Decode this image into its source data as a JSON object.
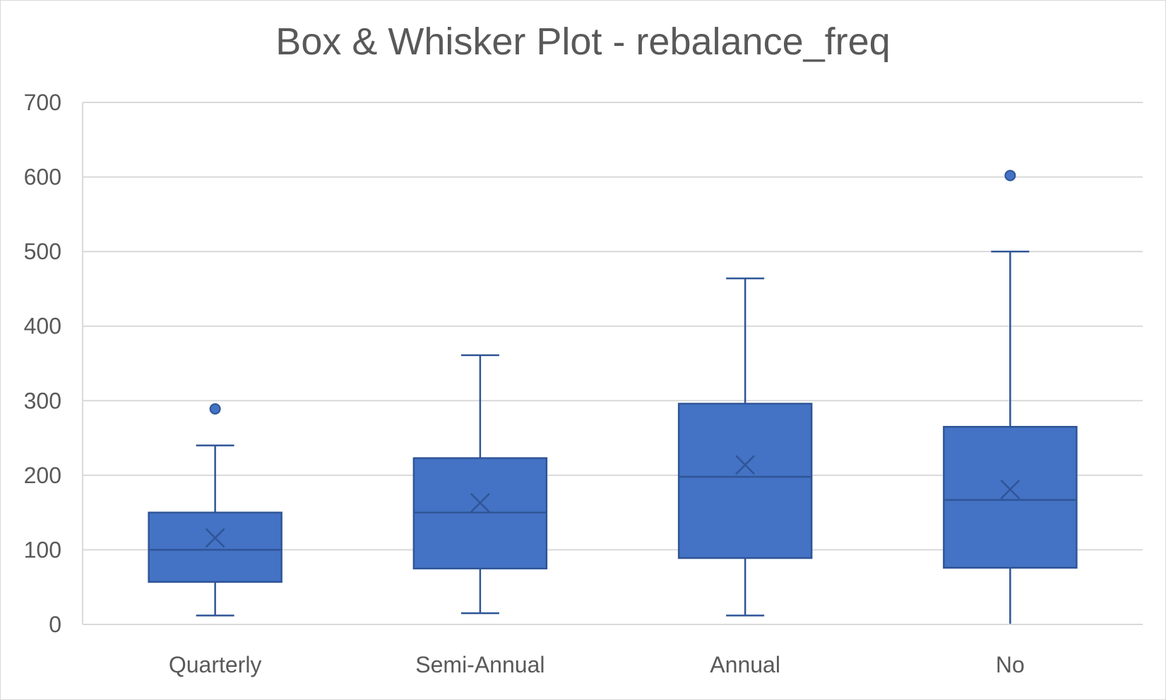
{
  "chart_data": {
    "type": "box",
    "title": "Box & Whisker Plot - rebalance_freq",
    "xlabel": "",
    "ylabel": "",
    "ylim": [
      0,
      700
    ],
    "yticks": [
      0,
      100,
      200,
      300,
      400,
      500,
      600,
      700
    ],
    "grid": true,
    "legend": "none",
    "colors": {
      "box_fill": "#4472c4",
      "box_stroke": "#2f5597",
      "grid": "#d9d9d9",
      "text": "#595959"
    },
    "categories": [
      "Quarterly",
      "Semi-Annual",
      "Annual",
      "No"
    ],
    "boxes": [
      {
        "category": "Quarterly",
        "min": 12,
        "q1": 57,
        "median": 100,
        "q3": 150,
        "max": 240,
        "mean": 116,
        "outliers": [
          289
        ]
      },
      {
        "category": "Semi-Annual",
        "min": 15,
        "q1": 75,
        "median": 150,
        "q3": 223,
        "max": 361,
        "mean": 163,
        "outliers": []
      },
      {
        "category": "Annual",
        "min": 12,
        "q1": 89,
        "median": 198,
        "q3": 296,
        "max": 464,
        "mean": 214,
        "outliers": []
      },
      {
        "category": "No",
        "min": 0,
        "q1": 76,
        "median": 167,
        "q3": 265,
        "max": 500,
        "mean": 181,
        "outliers": [
          602
        ]
      }
    ]
  }
}
